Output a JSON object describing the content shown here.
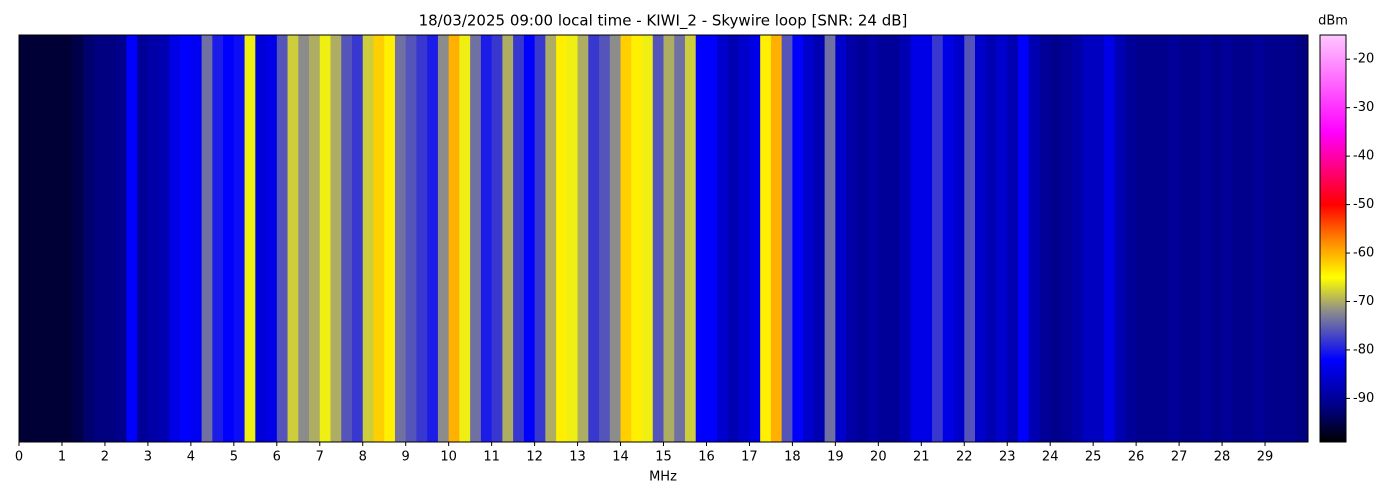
{
  "chart_data": {
    "type": "waterfall",
    "title": "18/03/2025 09:00 local time - KIWI_2 - Skywire loop [SNR: 24 dB]",
    "xlabel": "MHz",
    "colorbar_label": "dBm",
    "xlim": [
      0,
      30
    ],
    "xticks": [
      0,
      1,
      2,
      3,
      4,
      5,
      6,
      7,
      8,
      9,
      10,
      11,
      12,
      13,
      14,
      15,
      16,
      17,
      18,
      19,
      20,
      21,
      22,
      23,
      24,
      25,
      26,
      27,
      28,
      29
    ],
    "clim": [
      -99,
      -15
    ],
    "cticks": [
      -20,
      -30,
      -40,
      -50,
      -60,
      -70,
      -80,
      -90
    ],
    "colormap": [
      {
        "value": -99,
        "color": "#000000"
      },
      {
        "value": -92,
        "color": "#000080"
      },
      {
        "value": -82,
        "color": "#0000ff"
      },
      {
        "value": -72,
        "color": "#8c8c8c"
      },
      {
        "value": -65,
        "color": "#ffff00"
      },
      {
        "value": -57,
        "color": "#ff8000"
      },
      {
        "value": -50,
        "color": "#ff0000"
      },
      {
        "value": -35,
        "color": "#ff00ff"
      },
      {
        "value": -15,
        "color": "#ffc8ff"
      }
    ],
    "bin_width": 0.25,
    "x": [
      0,
      0.25,
      0.5,
      0.75,
      1,
      1.25,
      1.5,
      1.75,
      2,
      2.25,
      2.5,
      2.75,
      3,
      3.25,
      3.5,
      3.75,
      4,
      4.25,
      4.5,
      4.75,
      5,
      5.25,
      5.5,
      5.75,
      6,
      6.25,
      6.5,
      6.75,
      7,
      7.25,
      7.5,
      7.75,
      8,
      8.25,
      8.5,
      8.75,
      9,
      9.25,
      9.5,
      9.75,
      10,
      10.25,
      10.5,
      10.75,
      11,
      11.25,
      11.5,
      11.75,
      12,
      12.25,
      12.5,
      12.75,
      13,
      13.25,
      13.5,
      13.75,
      14,
      14.25,
      14.5,
      14.75,
      15,
      15.25,
      15.5,
      15.75,
      16,
      16.25,
      16.5,
      16.75,
      17,
      17.25,
      17.5,
      17.75,
      18,
      18.25,
      18.5,
      18.75,
      19,
      19.25,
      19.5,
      19.75,
      20,
      20.25,
      20.5,
      20.75,
      21,
      21.25,
      21.5,
      21.75,
      22,
      22.25,
      22.5,
      22.75,
      23,
      23.25,
      23.5,
      23.75,
      24,
      24.25,
      24.5,
      24.75,
      25,
      25.25,
      25.5,
      25.75,
      26,
      26.25,
      26.5,
      26.75,
      27,
      27.25,
      27.5,
      27.75,
      28,
      28.25,
      28.5,
      28.75,
      29,
      29.25,
      29.5,
      29.75
    ],
    "values": [
      -96,
      -96,
      -96,
      -96,
      -96,
      -95,
      -93,
      -92,
      -92,
      -91,
      -82,
      -90,
      -89,
      -88,
      -84,
      -82,
      -83,
      -74,
      -80,
      -82,
      -81,
      -66,
      -85,
      -84,
      -76,
      -68,
      -72,
      -70,
      -66,
      -70,
      -76,
      -78,
      -68,
      -62,
      -64,
      -74,
      -76,
      -78,
      -80,
      -72,
      -60,
      -66,
      -74,
      -80,
      -78,
      -70,
      -78,
      -82,
      -78,
      -70,
      -64,
      -66,
      -70,
      -78,
      -76,
      -72,
      -62,
      -64,
      -66,
      -76,
      -70,
      -74,
      -68,
      -82,
      -82,
      -86,
      -88,
      -86,
      -84,
      -64,
      -60,
      -76,
      -82,
      -86,
      -88,
      -74,
      -86,
      -89,
      -90,
      -89,
      -90,
      -90,
      -88,
      -84,
      -84,
      -78,
      -84,
      -86,
      -76,
      -86,
      -88,
      -86,
      -88,
      -82,
      -88,
      -90,
      -91,
      -90,
      -89,
      -87,
      -87,
      -84,
      -88,
      -90,
      -91,
      -91,
      -91,
      -90,
      -91,
      -91,
      -90,
      -91,
      -90,
      -91,
      -91,
      -90,
      -91,
      -91,
      -91,
      -92
    ]
  }
}
